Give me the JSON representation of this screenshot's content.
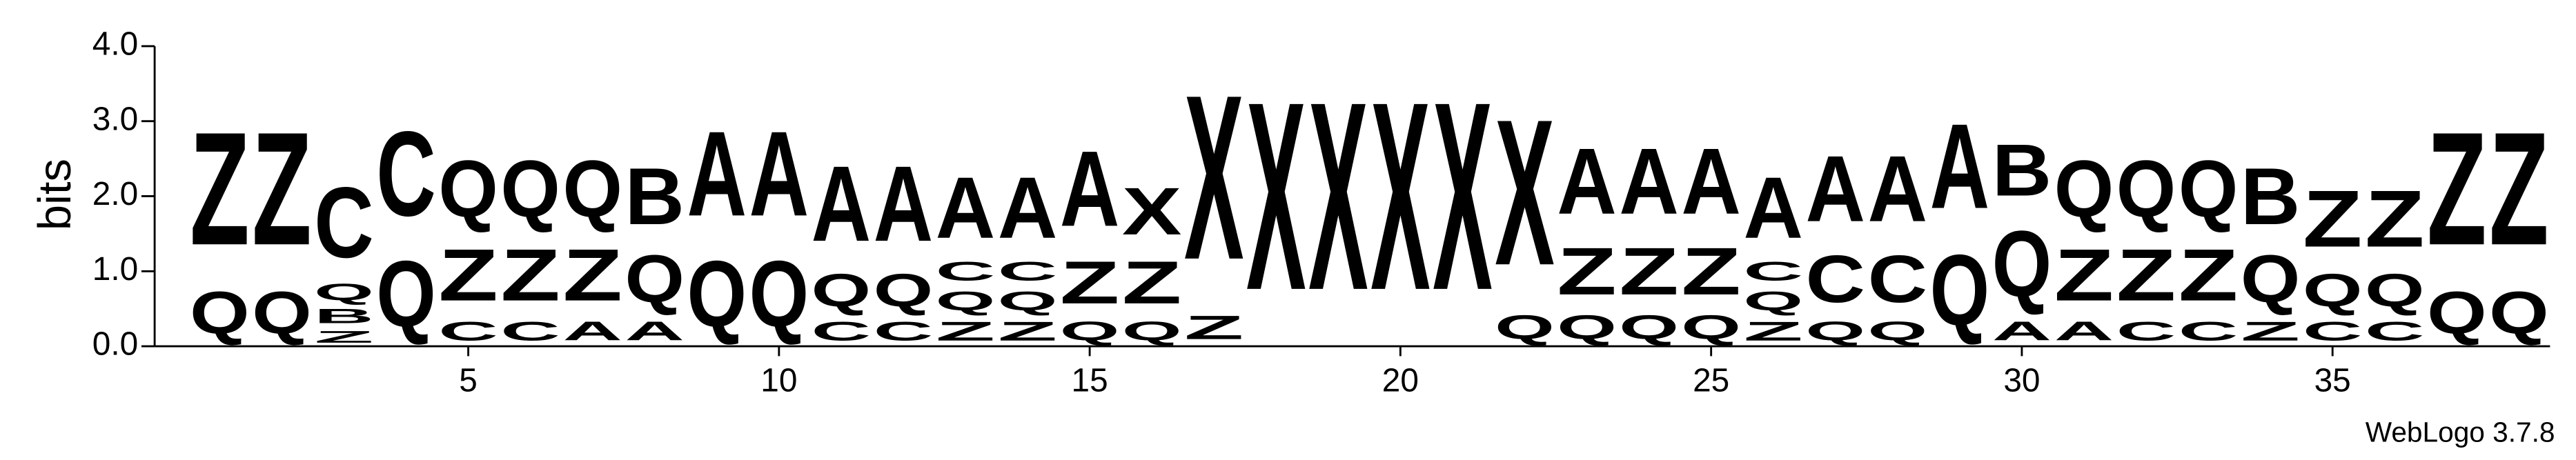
{
  "chart_data": {
    "type": "logo",
    "ylabel": "bits",
    "footer": "WebLogo 3.7.8",
    "xlim": [
      0.5,
      38.5
    ],
    "xticks": [
      5,
      10,
      15,
      20,
      25,
      30,
      35
    ],
    "ylim": [
      0,
      4
    ],
    "yticks": [
      {
        "value": 0,
        "label": "0.0"
      },
      {
        "value": 1,
        "label": "1.0"
      },
      {
        "value": 2,
        "label": "2.0"
      },
      {
        "value": 3,
        "label": "3.0"
      },
      {
        "value": 4,
        "label": "4.0"
      }
    ],
    "colors": {
      "A": "#ff0000",
      "Q": "#ff0000",
      "Z": "#ff0000",
      "B": "#ff8c00",
      "C": "#228b22",
      "X": "#0000ff"
    },
    "x": [
      1,
      2,
      3,
      4,
      5,
      6,
      7,
      8,
      9,
      10,
      11,
      12,
      13,
      14,
      15,
      16,
      17,
      18,
      19,
      20,
      21,
      22,
      23,
      24,
      25,
      26,
      27,
      28,
      29,
      30,
      31,
      32,
      33,
      34,
      35,
      36,
      37,
      38
    ],
    "stacks": [
      {
        "letters": [
          "Q",
          "Z"
        ],
        "heights": [
          0.9,
          2.4
        ]
      },
      {
        "letters": [
          "Q",
          "Z"
        ],
        "heights": [
          0.9,
          2.4
        ]
      },
      {
        "letters": [
          "Z",
          "B",
          "Q",
          "C"
        ],
        "heights": [
          0.25,
          0.3,
          0.35,
          1.5
        ]
      },
      {
        "letters": [
          "Q",
          "C"
        ],
        "heights": [
          1.4,
          1.8
        ]
      },
      {
        "letters": [
          "C",
          "Z",
          "Q"
        ],
        "heights": [
          0.4,
          1.1,
          1.2
        ]
      },
      {
        "letters": [
          "C",
          "Z",
          "Q"
        ],
        "heights": [
          0.4,
          1.1,
          1.2
        ]
      },
      {
        "letters": [
          "A",
          "Z",
          "Q"
        ],
        "heights": [
          0.4,
          1.1,
          1.2
        ]
      },
      {
        "letters": [
          "A",
          "Q",
          "B"
        ],
        "heights": [
          0.4,
          1.0,
          1.2
        ]
      },
      {
        "letters": [
          "Q",
          "A"
        ],
        "heights": [
          1.4,
          1.8
        ]
      },
      {
        "letters": [
          "Q",
          "A"
        ],
        "heights": [
          1.4,
          1.8
        ]
      },
      {
        "letters": [
          "C",
          "Q",
          "A"
        ],
        "heights": [
          0.4,
          0.7,
          1.6
        ]
      },
      {
        "letters": [
          "C",
          "Q",
          "A"
        ],
        "heights": [
          0.4,
          0.7,
          1.6
        ]
      },
      {
        "letters": [
          "Z",
          "Q",
          "C",
          "A"
        ],
        "heights": [
          0.4,
          0.4,
          0.4,
          1.3
        ]
      },
      {
        "letters": [
          "Z",
          "Q",
          "C",
          "A"
        ],
        "heights": [
          0.4,
          0.4,
          0.4,
          1.3
        ]
      },
      {
        "letters": [
          "Q",
          "Z",
          "A"
        ],
        "heights": [
          0.4,
          0.9,
          1.6
        ]
      },
      {
        "letters": [
          "Q",
          "Z",
          "X"
        ],
        "heights": [
          0.4,
          0.9,
          1.0
        ]
      },
      {
        "letters": [
          "Z",
          "X"
        ],
        "heights": [
          0.5,
          3.5
        ]
      },
      {
        "letters": [
          "X"
        ],
        "heights": [
          4.0
        ]
      },
      {
        "letters": [
          "X"
        ],
        "heights": [
          4.0
        ]
      },
      {
        "letters": [
          "X"
        ],
        "heights": [
          4.0
        ]
      },
      {
        "letters": [
          "X"
        ],
        "heights": [
          4.0
        ]
      },
      {
        "letters": [
          "Q",
          "X"
        ],
        "heights": [
          0.5,
          3.1
        ]
      },
      {
        "letters": [
          "Q",
          "Z",
          "A"
        ],
        "heights": [
          0.5,
          1.0,
          1.4
        ]
      },
      {
        "letters": [
          "Q",
          "Z",
          "A"
        ],
        "heights": [
          0.5,
          1.0,
          1.4
        ]
      },
      {
        "letters": [
          "Q",
          "Z",
          "A"
        ],
        "heights": [
          0.5,
          1.0,
          1.4
        ]
      },
      {
        "letters": [
          "Z",
          "Q",
          "C",
          "A"
        ],
        "heights": [
          0.4,
          0.4,
          0.4,
          1.3
        ]
      },
      {
        "letters": [
          "Q",
          "C",
          "A"
        ],
        "heights": [
          0.4,
          1.0,
          1.4
        ]
      },
      {
        "letters": [
          "Q",
          "C",
          "A"
        ],
        "heights": [
          0.4,
          1.0,
          1.4
        ]
      },
      {
        "letters": [
          "Q",
          "A"
        ],
        "heights": [
          1.5,
          1.8
        ]
      },
      {
        "letters": [
          "A",
          "Q",
          "B"
        ],
        "heights": [
          0.4,
          1.4,
          1.1
        ]
      },
      {
        "letters": [
          "A",
          "Z",
          "Q"
        ],
        "heights": [
          0.4,
          1.1,
          1.2
        ]
      },
      {
        "letters": [
          "C",
          "Z",
          "Q"
        ],
        "heights": [
          0.4,
          1.1,
          1.2
        ]
      },
      {
        "letters": [
          "C",
          "Z",
          "Q"
        ],
        "heights": [
          0.4,
          1.1,
          1.2
        ]
      },
      {
        "letters": [
          "Z",
          "Q",
          "B"
        ],
        "heights": [
          0.4,
          1.0,
          1.2
        ]
      },
      {
        "letters": [
          "C",
          "Q",
          "Z"
        ],
        "heights": [
          0.4,
          0.7,
          1.2
        ]
      },
      {
        "letters": [
          "C",
          "Q",
          "Z"
        ],
        "heights": [
          0.4,
          0.7,
          1.2
        ]
      },
      {
        "letters": [
          "Q",
          "Z"
        ],
        "heights": [
          0.9,
          2.4
        ]
      },
      {
        "letters": [
          "Q",
          "Z"
        ],
        "heights": [
          0.9,
          2.4
        ]
      }
    ]
  }
}
